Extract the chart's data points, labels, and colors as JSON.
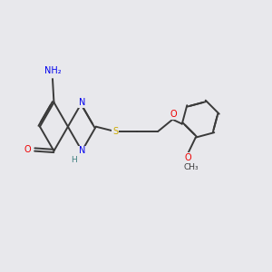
{
  "background_color": "#e8e8ec",
  "atom_colors": {
    "C": "#3a3a3a",
    "N": "#0000ee",
    "O": "#ee0000",
    "S": "#ccaa00",
    "H": "#408080"
  },
  "bond_color": "#3a3a3a",
  "lw": 1.4,
  "fs": 7.0,
  "xlim": [
    0,
    10
  ],
  "ylim": [
    0,
    10
  ]
}
